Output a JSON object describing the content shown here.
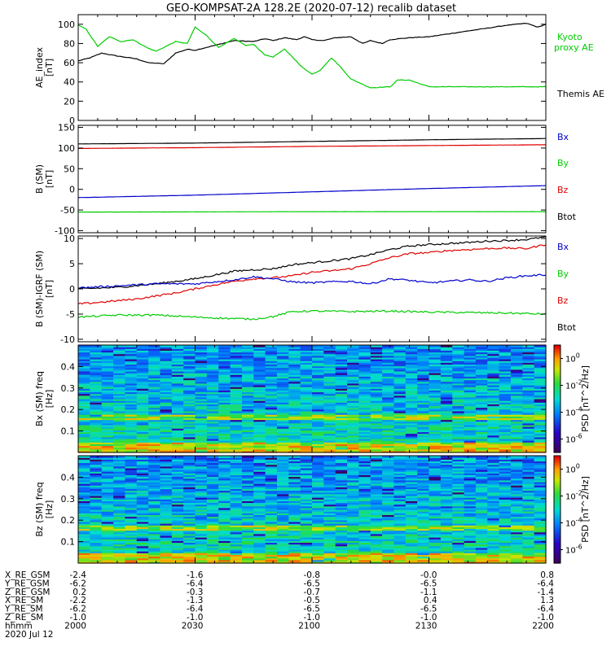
{
  "title": "GEO-KOMPSAT-2A 128.2E (2020-07-12) recalib dataset",
  "colors": {
    "black": "#000000",
    "red": "#e00000",
    "blue": "#0000cc",
    "green": "#00cc00"
  },
  "chart_data": [
    {
      "type": "line",
      "ylabel": "AE_index [nT]",
      "ylim": [
        0,
        110
      ],
      "yticks": [
        0,
        20,
        40,
        60,
        80,
        100
      ],
      "x_unit": "minutes after 2000 UT",
      "xlim": [
        0,
        120
      ],
      "legend": [
        {
          "label": "Kyoto proxy AE",
          "color": "green"
        },
        {
          "label": "Themis AE",
          "color": "black"
        }
      ],
      "series": [
        {
          "name": "Themis AE",
          "color": "black",
          "x": [
            0,
            3,
            6,
            10,
            15,
            18,
            22,
            25,
            28,
            30,
            33,
            36,
            40,
            45,
            48,
            50,
            53,
            56,
            58,
            60,
            63,
            66,
            70,
            73,
            75,
            78,
            80,
            85,
            90,
            95,
            100,
            105,
            110,
            115,
            118,
            120
          ],
          "y": [
            62,
            65,
            70,
            67,
            64,
            60,
            59,
            70,
            74,
            73,
            76,
            79,
            83,
            82,
            85,
            83,
            86,
            84,
            87,
            84,
            83,
            86,
            87,
            80,
            83,
            80,
            84,
            86,
            87,
            90,
            93,
            96,
            99,
            101,
            97,
            100
          ]
        },
        {
          "name": "Kyoto proxy AE",
          "color": "green",
          "x": [
            0,
            2,
            5,
            8,
            11,
            14,
            18,
            20,
            23,
            25,
            28,
            30,
            33,
            36,
            40,
            43,
            45,
            48,
            50,
            53,
            55,
            57,
            60,
            62,
            65,
            67,
            70,
            75,
            80,
            82,
            85,
            90,
            95,
            100,
            110,
            120
          ],
          "y": [
            99,
            95,
            77,
            87,
            82,
            84,
            75,
            72,
            78,
            82,
            80,
            97,
            88,
            76,
            85,
            78,
            79,
            68,
            66,
            74,
            66,
            57,
            48,
            52,
            65,
            57,
            43,
            34,
            35,
            42,
            42,
            35,
            35,
            35,
            35,
            35
          ]
        }
      ]
    },
    {
      "type": "line",
      "ylabel": "B (SM) [nT]",
      "ylim": [
        -105,
        155
      ],
      "yticks": [
        -100,
        -50,
        0,
        50,
        100,
        150
      ],
      "xlim": [
        0,
        120
      ],
      "legend": [
        {
          "label": "Bx",
          "color": "blue"
        },
        {
          "label": "By",
          "color": "green"
        },
        {
          "label": "Bz",
          "color": "red"
        },
        {
          "label": "Btot",
          "color": "black"
        }
      ],
      "series": [
        {
          "name": "Btot",
          "color": "black",
          "x": [
            0,
            30,
            60,
            90,
            120
          ],
          "y": [
            110,
            112,
            116,
            120,
            123
          ]
        },
        {
          "name": "Bz",
          "color": "red",
          "x": [
            0,
            30,
            60,
            90,
            120
          ],
          "y": [
            99,
            101,
            104,
            106,
            108
          ]
        },
        {
          "name": "Bx",
          "color": "blue",
          "x": [
            0,
            30,
            60,
            90,
            120
          ],
          "y": [
            -20,
            -14,
            -6,
            2,
            9
          ]
        },
        {
          "name": "By",
          "color": "green",
          "x": [
            0,
            60,
            120
          ],
          "y": [
            -55,
            -54,
            -54
          ]
        }
      ]
    },
    {
      "type": "line",
      "ylabel": "B (SM)-IGRF (SM) [nT]",
      "ylim": [
        -10.5,
        10.5
      ],
      "yticks": [
        -10,
        -5,
        0,
        5,
        10
      ],
      "xlim": [
        0,
        120
      ],
      "legend": [
        {
          "label": "Bx",
          "color": "blue"
        },
        {
          "label": "By",
          "color": "green"
        },
        {
          "label": "Bz",
          "color": "red"
        },
        {
          "label": "Btot",
          "color": "black"
        }
      ],
      "series": [
        {
          "name": "Btot",
          "color": "black",
          "x": [
            0,
            10,
            20,
            30,
            40,
            45,
            50,
            55,
            60,
            65,
            70,
            75,
            80,
            85,
            90,
            95,
            100,
            105,
            110,
            115,
            120
          ],
          "y": [
            0,
            0.3,
            1,
            2,
            3.5,
            3.8,
            4,
            4.8,
            5.2,
            5.6,
            6,
            6.8,
            7.8,
            8.5,
            8.8,
            9,
            9.2,
            9.5,
            9.6,
            9.8,
            10.3
          ]
        },
        {
          "name": "Bz",
          "color": "red",
          "x": [
            0,
            8,
            15,
            25,
            35,
            40,
            45,
            50,
            55,
            60,
            65,
            70,
            75,
            80,
            85,
            90,
            95,
            100,
            105,
            110,
            115,
            120
          ],
          "y": [
            -3,
            -2.5,
            -2,
            -0.8,
            0.8,
            1.5,
            2,
            2.2,
            2.6,
            3.3,
            3.6,
            4,
            5,
            6.2,
            7,
            7.2,
            7.6,
            7.8,
            8,
            8.1,
            8,
            8.8
          ]
        },
        {
          "name": "Bx",
          "color": "blue",
          "x": [
            0,
            10,
            20,
            30,
            40,
            45,
            50,
            55,
            60,
            65,
            70,
            75,
            80,
            85,
            90,
            95,
            100,
            105,
            110,
            115,
            120
          ],
          "y": [
            0.2,
            0.6,
            1,
            1,
            1.8,
            2.4,
            2,
            1.4,
            1.2,
            1.4,
            1.5,
            1,
            2,
            1.7,
            1.2,
            1.5,
            1.8,
            1.5,
            2.2,
            2.6,
            2.8
          ]
        },
        {
          "name": "By",
          "color": "green",
          "x": [
            0,
            10,
            20,
            30,
            40,
            45,
            50,
            55,
            60,
            70,
            80,
            90,
            100,
            110,
            120
          ],
          "y": [
            -5.6,
            -5.2,
            -5.2,
            -5.6,
            -5.9,
            -6,
            -5.5,
            -4.5,
            -4.4,
            -4.5,
            -4.4,
            -4.6,
            -4.7,
            -4.8,
            -5
          ]
        }
      ]
    },
    {
      "type": "heatmap",
      "ylabel": "Bx (SM) freq [Hz]",
      "ylim": [
        0,
        0.5
      ],
      "yticks": [
        0.1,
        0.2,
        0.3,
        0.4
      ],
      "xlim": [
        0,
        120
      ],
      "colorbar_label": "PSD [nT^2/Hz]",
      "colorbar_ticks": [
        "10^0",
        "10^-2",
        "10^-4",
        "10^-6"
      ],
      "colorbar_range_log10": [
        -7,
        1
      ]
    },
    {
      "type": "heatmap",
      "ylabel": "Bz (SM) freq [Hz]",
      "ylim": [
        0,
        0.5
      ],
      "yticks": [
        0.1,
        0.2,
        0.3,
        0.4
      ],
      "xlim": [
        0,
        120
      ],
      "colorbar_label": "PSD [nT^2/Hz]",
      "colorbar_ticks": [
        "10^0",
        "10^-2",
        "10^-4",
        "10^-6"
      ],
      "colorbar_range_log10": [
        -7,
        1
      ]
    }
  ],
  "xaxis_table": {
    "labels": [
      "X_RE_GSM",
      "Y_RE_GSM",
      "Z_RE_GSM",
      "X_RE_SM",
      "Y_RE_SM",
      "Z_RE_SM",
      "hhmm"
    ],
    "date": "2020 Jul 12",
    "ticks": [
      {
        "x": 0,
        "values": [
          "-2.4",
          "-6.2",
          "0.2",
          "-2.2",
          "-6.2",
          "-1.0",
          "2000"
        ]
      },
      {
        "x": 30,
        "values": [
          "-1.6",
          "-6.4",
          "-0.3",
          "-1.3",
          "-6.4",
          "-1.0",
          "2030"
        ]
      },
      {
        "x": 60,
        "values": [
          "-0.8",
          "-6.5",
          "-0.7",
          "-0.5",
          "-6.5",
          "-1.0",
          "2100"
        ]
      },
      {
        "x": 90,
        "values": [
          "-0.0",
          "-6.5",
          "-1.1",
          "0.4",
          "-6.5",
          "-1.0",
          "2130"
        ]
      },
      {
        "x": 120,
        "values": [
          "0.8",
          "-6.4",
          "-1.4",
          "1.3",
          "-6.4",
          "-1.0",
          "2200"
        ]
      }
    ]
  }
}
